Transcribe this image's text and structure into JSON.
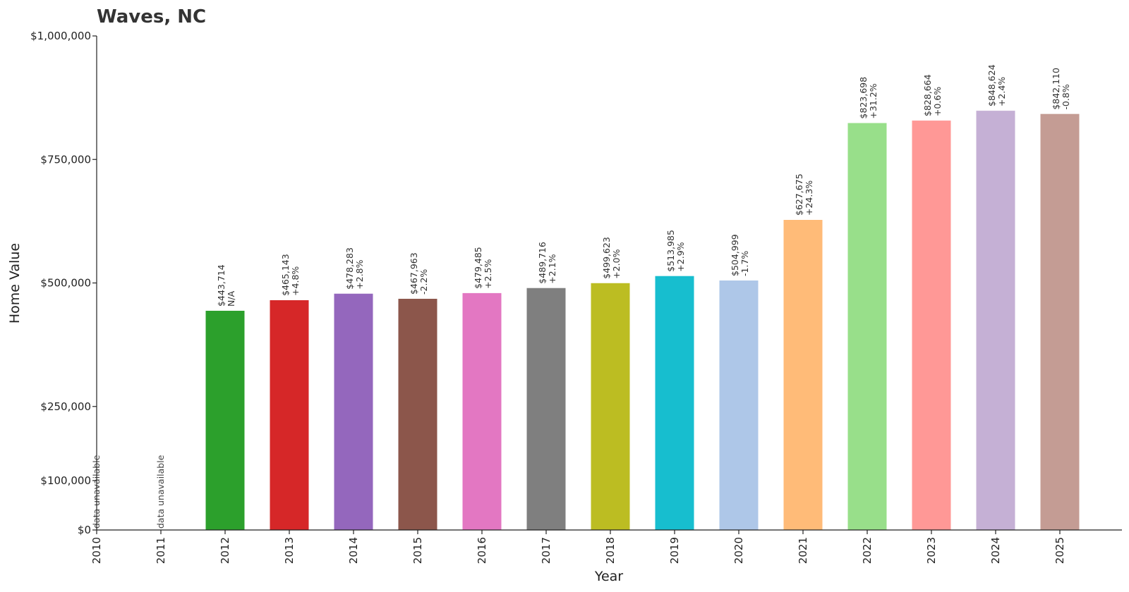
{
  "chart_data": {
    "type": "bar",
    "title": "Waves, NC",
    "xlabel": "Year",
    "ylabel": "Home Value",
    "categories": [
      "2010",
      "2011",
      "2012",
      "2013",
      "2014",
      "2015",
      "2016",
      "2017",
      "2018",
      "2019",
      "2020",
      "2021",
      "2022",
      "2023",
      "2024",
      "2025"
    ],
    "values": [
      null,
      null,
      443714,
      465143,
      478283,
      467963,
      479485,
      489716,
      499623,
      513985,
      504999,
      627675,
      823698,
      828664,
      848624,
      842110
    ],
    "value_labels": [
      null,
      null,
      "$443,714",
      "$465,143",
      "$478,283",
      "$467,963",
      "$479,485",
      "$489,716",
      "$499,623",
      "$513,985",
      "$504,999",
      "$627,675",
      "$823,698",
      "$828,664",
      "$848,624",
      "$842,110"
    ],
    "change_labels": [
      null,
      null,
      "N/A",
      "+4.8%",
      "+2.8%",
      "-2.2%",
      "+2.5%",
      "+2.1%",
      "+2.0%",
      "+2.9%",
      "-1.7%",
      "+24.3%",
      "+31.2%",
      "+0.6%",
      "+2.4%",
      "-0.8%"
    ],
    "unavailable_label": "data unavailable",
    "colors": [
      "#1f77b4",
      "#ff7f0e",
      "#2ca02c",
      "#d62728",
      "#9467bd",
      "#8c564b",
      "#e377c2",
      "#7f7f7f",
      "#bcbd22",
      "#17becf",
      "#aec7e8",
      "#ffbb78",
      "#98df8a",
      "#ff9896",
      "#c5b0d5",
      "#c49c94"
    ],
    "yticks": [
      0,
      100000,
      250000,
      500000,
      750000,
      1000000
    ],
    "ytick_labels": [
      "$0",
      "$100,000",
      "$250,000",
      "$500,000",
      "$750,000",
      "$1,000,000"
    ],
    "ylim": [
      0,
      1000000
    ],
    "grid": false,
    "legend": "none"
  }
}
